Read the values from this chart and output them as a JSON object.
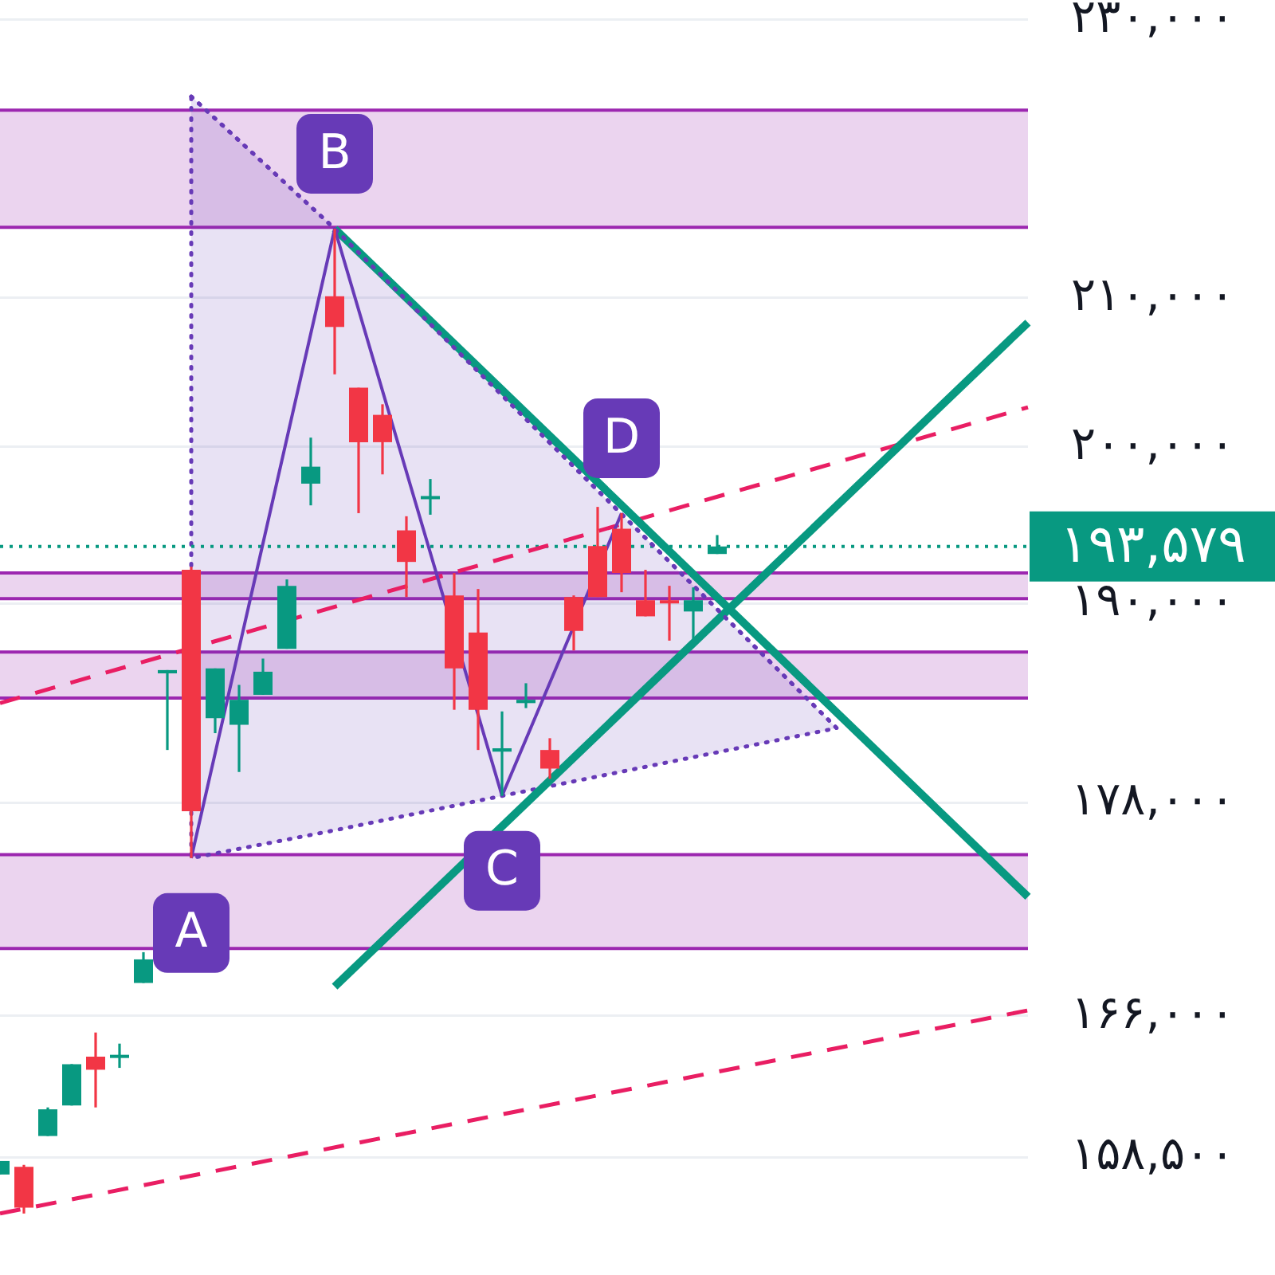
{
  "chart_data": {
    "type": "candlestick",
    "categories": [
      null,
      null,
      null,
      null,
      null,
      null,
      null,
      null,
      null,
      null,
      null,
      null,
      null,
      null,
      null,
      null,
      null,
      null,
      null,
      null,
      null,
      null,
      null,
      null,
      null,
      null,
      null,
      null,
      null,
      null,
      null,
      null,
      null,
      null,
      null,
      null,
      null,
      null,
      null,
      null,
      null,
      null,
      null,
      null
    ],
    "ohlc": [
      [
        157600,
        158300,
        157600,
        158300
      ],
      [
        158000,
        158100,
        155600,
        155900
      ],
      [
        159600,
        161100,
        159600,
        161000
      ],
      [
        161200,
        163400,
        161200,
        163400
      ],
      [
        163800,
        165100,
        161100,
        163100
      ],
      [
        163800,
        164500,
        163200,
        163900
      ],
      [
        167800,
        169500,
        167800,
        169100
      ],
      [
        185700,
        185900,
        181100,
        185900
      ],
      [
        192100,
        192300,
        174800,
        177500
      ],
      [
        183000,
        186000,
        182100,
        186000
      ],
      [
        182600,
        185000,
        179800,
        184100
      ],
      [
        184400,
        186600,
        184400,
        185800
      ],
      [
        187200,
        191500,
        187200,
        191100
      ],
      [
        197600,
        200600,
        196200,
        198700
      ],
      [
        210100,
        214800,
        204800,
        208000
      ],
      [
        203900,
        203900,
        195700,
        200300
      ],
      [
        202100,
        202800,
        198200,
        200300
      ],
      [
        194600,
        195500,
        190400,
        192600
      ],
      [
        196600,
        197900,
        195600,
        196800
      ],
      [
        190500,
        191900,
        183500,
        186000
      ],
      [
        188200,
        190900,
        181100,
        183500
      ],
      [
        181000,
        183400,
        178400,
        181200
      ],
      [
        183900,
        185100,
        183600,
        184100
      ],
      [
        181100,
        181800,
        179400,
        180000
      ],
      [
        190400,
        190500,
        187100,
        188300
      ],
      [
        193600,
        196100,
        190400,
        190400
      ],
      [
        194700,
        195700,
        190700,
        191900
      ],
      [
        190200,
        192100,
        189200,
        189200
      ],
      [
        190200,
        191100,
        187700,
        190000
      ],
      [
        189500,
        191000,
        187800,
        190200
      ],
      [
        193100,
        194300,
        193100,
        193579
      ],
      null,
      null,
      null,
      null,
      null,
      null,
      null,
      null,
      null,
      null,
      null,
      null,
      null
    ],
    "colors": [
      "#089981",
      "#f23645",
      "#089981",
      "#089981",
      "#f23645",
      "#089981",
      "#089981",
      "#089981",
      "#f23645",
      "#089981",
      "#089981",
      "#089981",
      "#089981",
      "#089981",
      "#f23645",
      "#f23645",
      "#f23645",
      "#f23645",
      "#089981",
      "#f23645",
      "#f23645",
      "#089981",
      "#089981",
      "#f23645",
      "#f23645",
      "#f23645",
      "#f23645",
      "#f23645",
      "#f23645",
      "#089981",
      "#089981",
      null,
      null,
      null,
      null,
      null,
      null,
      null,
      null,
      null,
      null,
      null,
      null,
      null
    ],
    "series": [
      {
        "type": "line",
        "color": "#673ab7",
        "values": [
          null,
          null,
          null,
          null,
          null,
          null,
          null,
          null,
          174800,
          null,
          null,
          null,
          null,
          null,
          214800,
          null,
          null,
          null,
          null,
          null,
          null,
          178400,
          null,
          null,
          null,
          null,
          195700,
          null,
          null,
          null,
          null,
          null,
          null,
          null,
          null,
          null,
          null,
          null,
          null,
          null,
          null,
          null,
          null,
          null
        ],
        "value_labels": [
          null,
          null,
          null,
          null,
          null,
          null,
          null,
          null,
          "A",
          null,
          null,
          null,
          null,
          null,
          "B",
          null,
          null,
          null,
          null,
          null,
          null,
          "C",
          null,
          null,
          null,
          null,
          "D",
          null,
          null,
          null,
          null,
          null,
          null,
          null,
          null,
          null,
          null,
          null,
          null,
          null,
          null,
          null,
          null,
          null
        ]
      },
      {
        "type": "line",
        "line_style": "dotted",
        "color": "#673ab7",
        "values": [
          null,
          null,
          null,
          null,
          null,
          null,
          null,
          null,
          224300,
          null,
          null,
          null,
          null,
          null,
          214800,
          null,
          null,
          null,
          null,
          null,
          null,
          203400,
          null,
          null,
          null,
          null,
          null,
          null,
          null,
          null,
          null,
          null,
          null,
          null,
          null,
          182400,
          null,
          null,
          null,
          null,
          null,
          null,
          null,
          null
        ],
        "lower": [
          null,
          null,
          null,
          null,
          null,
          null,
          null,
          null,
          174800,
          null,
          null,
          null,
          null,
          null,
          176400,
          null,
          null,
          null,
          null,
          null,
          null,
          178400,
          null,
          null,
          null,
          null,
          null,
          null,
          null,
          null,
          null,
          null,
          null,
          null,
          null,
          182400,
          null,
          null,
          null,
          null,
          null,
          null,
          null,
          null
        ],
        "upper": [
          null,
          null,
          null,
          null,
          null,
          null,
          null,
          null,
          224300,
          null,
          null,
          null,
          null,
          null,
          214800,
          null,
          null,
          null,
          null,
          null,
          null,
          203400,
          null,
          null,
          null,
          null,
          null,
          null,
          null,
          null,
          null,
          null,
          null,
          null,
          null,
          182400,
          null,
          null,
          null,
          null,
          null,
          null,
          null,
          null
        ]
      },
      {
        "type": "line",
        "color": "#089981",
        "values": [
          null,
          null,
          null,
          null,
          null,
          null,
          null,
          null,
          null,
          null,
          null,
          null,
          null,
          null,
          214800,
          null,
          null,
          null,
          null,
          null,
          null,
          null,
          null,
          null,
          null,
          null,
          null,
          null,
          null,
          null,
          null,
          null,
          null,
          null,
          null,
          null,
          null,
          null,
          null,
          null,
          null,
          null,
          null,
          172600
        ]
      },
      {
        "type": "line",
        "color": "#089981",
        "values": [
          null,
          null,
          null,
          null,
          null,
          null,
          null,
          null,
          null,
          null,
          null,
          null,
          null,
          null,
          167600,
          null,
          null,
          null,
          null,
          null,
          null,
          null,
          null,
          null,
          null,
          null,
          null,
          null,
          null,
          null,
          null,
          null,
          null,
          null,
          null,
          null,
          null,
          null,
          null,
          null,
          null,
          null,
          null,
          208300
        ]
      },
      {
        "type": "line",
        "line_style": "dashed",
        "color": "#e91e63",
        "values": [
          183900,
          null,
          null,
          null,
          null,
          null,
          null,
          null,
          null,
          null,
          null,
          null,
          null,
          null,
          null,
          null,
          null,
          null,
          null,
          null,
          null,
          null,
          null,
          null,
          null,
          null,
          null,
          null,
          null,
          null,
          null,
          null,
          null,
          null,
          null,
          null,
          null,
          null,
          null,
          null,
          null,
          null,
          null,
          202600
        ]
      },
      {
        "type": "line",
        "line_style": "dashed",
        "color": "#e91e63",
        "values": [
          155600,
          null,
          null,
          null,
          null,
          null,
          null,
          null,
          null,
          null,
          null,
          null,
          null,
          null,
          null,
          null,
          null,
          null,
          null,
          null,
          null,
          null,
          null,
          null,
          null,
          null,
          null,
          null,
          null,
          null,
          null,
          null,
          null,
          null,
          null,
          null,
          null,
          null,
          null,
          null,
          null,
          null,
          null,
          166300
        ]
      }
    ],
    "ylim": [
      152500,
      231500
    ],
    "yticks": [
      {
        "value": 230000,
        "label": "۲۳۰,۰۰۰"
      },
      {
        "value": 210000,
        "label": "۲۱۰,۰۰۰"
      },
      {
        "value": 200000,
        "label": "۲۰۰,۰۰۰"
      },
      {
        "value": 190000,
        "label": "۱۹۰,۰۰۰"
      },
      {
        "value": 178000,
        "label": "۱۷۸,۰۰۰"
      },
      {
        "value": 166000,
        "label": "۱۶۶,۰۰۰"
      },
      {
        "value": 158500,
        "label": "۱۵۸,۵۰۰"
      }
    ],
    "log": true,
    "grid": "y",
    "marker": "none",
    "tick_labels": "y",
    "bands": [
      {
        "axis": "y",
        "from": 214900,
        "to": 223300,
        "color": "#9c27b0"
      },
      {
        "axis": "y",
        "from": 190300,
        "to": 191900,
        "color": "#9c27b0"
      },
      {
        "axis": "y",
        "from": 184200,
        "to": 187000,
        "color": "#9c27b0"
      },
      {
        "axis": "y",
        "from": 169700,
        "to": 175000,
        "color": "#9c27b0"
      }
    ],
    "ref_lines": [
      {
        "axis": "y",
        "value": 193579,
        "label": "۱۹۳,۵۷۹",
        "color": "#089981",
        "line_style": "dotted"
      }
    ]
  }
}
